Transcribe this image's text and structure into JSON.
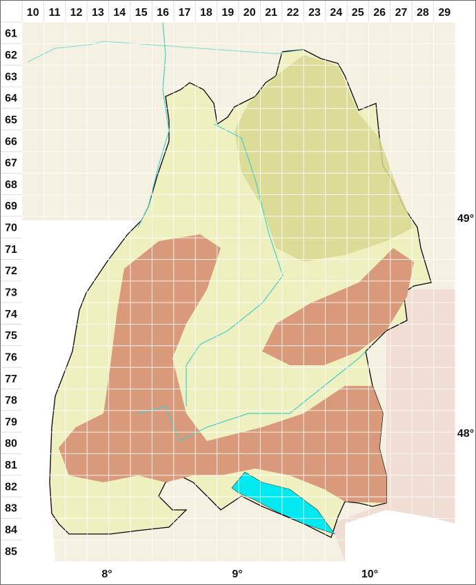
{
  "grid": {
    "columns": [
      "10",
      "11",
      "12",
      "13",
      "14",
      "15",
      "16",
      "17",
      "18",
      "19",
      "20",
      "21",
      "22",
      "23",
      "24",
      "25",
      "26",
      "27",
      "28",
      "29"
    ],
    "rows": [
      "61",
      "62",
      "63",
      "64",
      "65",
      "66",
      "67",
      "68",
      "69",
      "70",
      "71",
      "72",
      "73",
      "74",
      "75",
      "76",
      "77",
      "78",
      "79",
      "80",
      "81",
      "82",
      "83",
      "84",
      "85"
    ]
  },
  "longitude_labels": [
    "8°",
    "9°",
    "10°"
  ],
  "latitude_labels": [
    "49°",
    "48°"
  ],
  "colors": {
    "lowland": "#eef0c0",
    "hill": "#d8d890",
    "upland": "#d99a7c",
    "lake": "#00e8f0",
    "river": "#3fd0c8",
    "outside": "#f4f1e2",
    "outside_east": "#f0ddd4",
    "border": "#000000"
  }
}
